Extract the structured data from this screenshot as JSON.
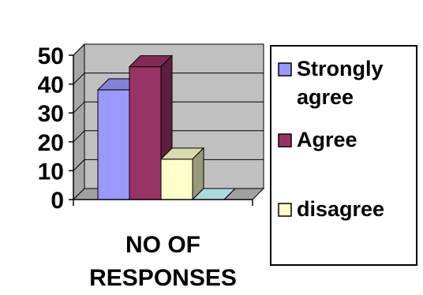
{
  "chart_data": {
    "type": "bar",
    "style": "3d-clustered-column",
    "categories": [
      "NO OF RESPONSES"
    ],
    "category_label_lines": [
      "NO OF",
      "RESPONSES"
    ],
    "series": [
      {
        "name": "Strongly agree",
        "legend_lines": [
          "Strongly",
          "agree"
        ],
        "values": [
          38
        ],
        "color": "#9999ff"
      },
      {
        "name": "Agree",
        "legend_lines": [
          "Agree"
        ],
        "values": [
          46
        ],
        "color": "#993366"
      },
      {
        "name": "disagree",
        "legend_lines": [
          "disagree"
        ],
        "values": [
          14
        ],
        "color": "#ffffcc"
      },
      {
        "name": "",
        "legend_lines": [],
        "values": [
          0
        ],
        "color": "#ccffff"
      }
    ],
    "ylim": [
      0,
      50
    ],
    "yticks": [
      0,
      10,
      20,
      30,
      40,
      50
    ],
    "grid": true,
    "legend": "right",
    "colors": {
      "wall": "#c0c0c0",
      "floor": "#a0a0a0",
      "gridline": "#000000"
    }
  }
}
